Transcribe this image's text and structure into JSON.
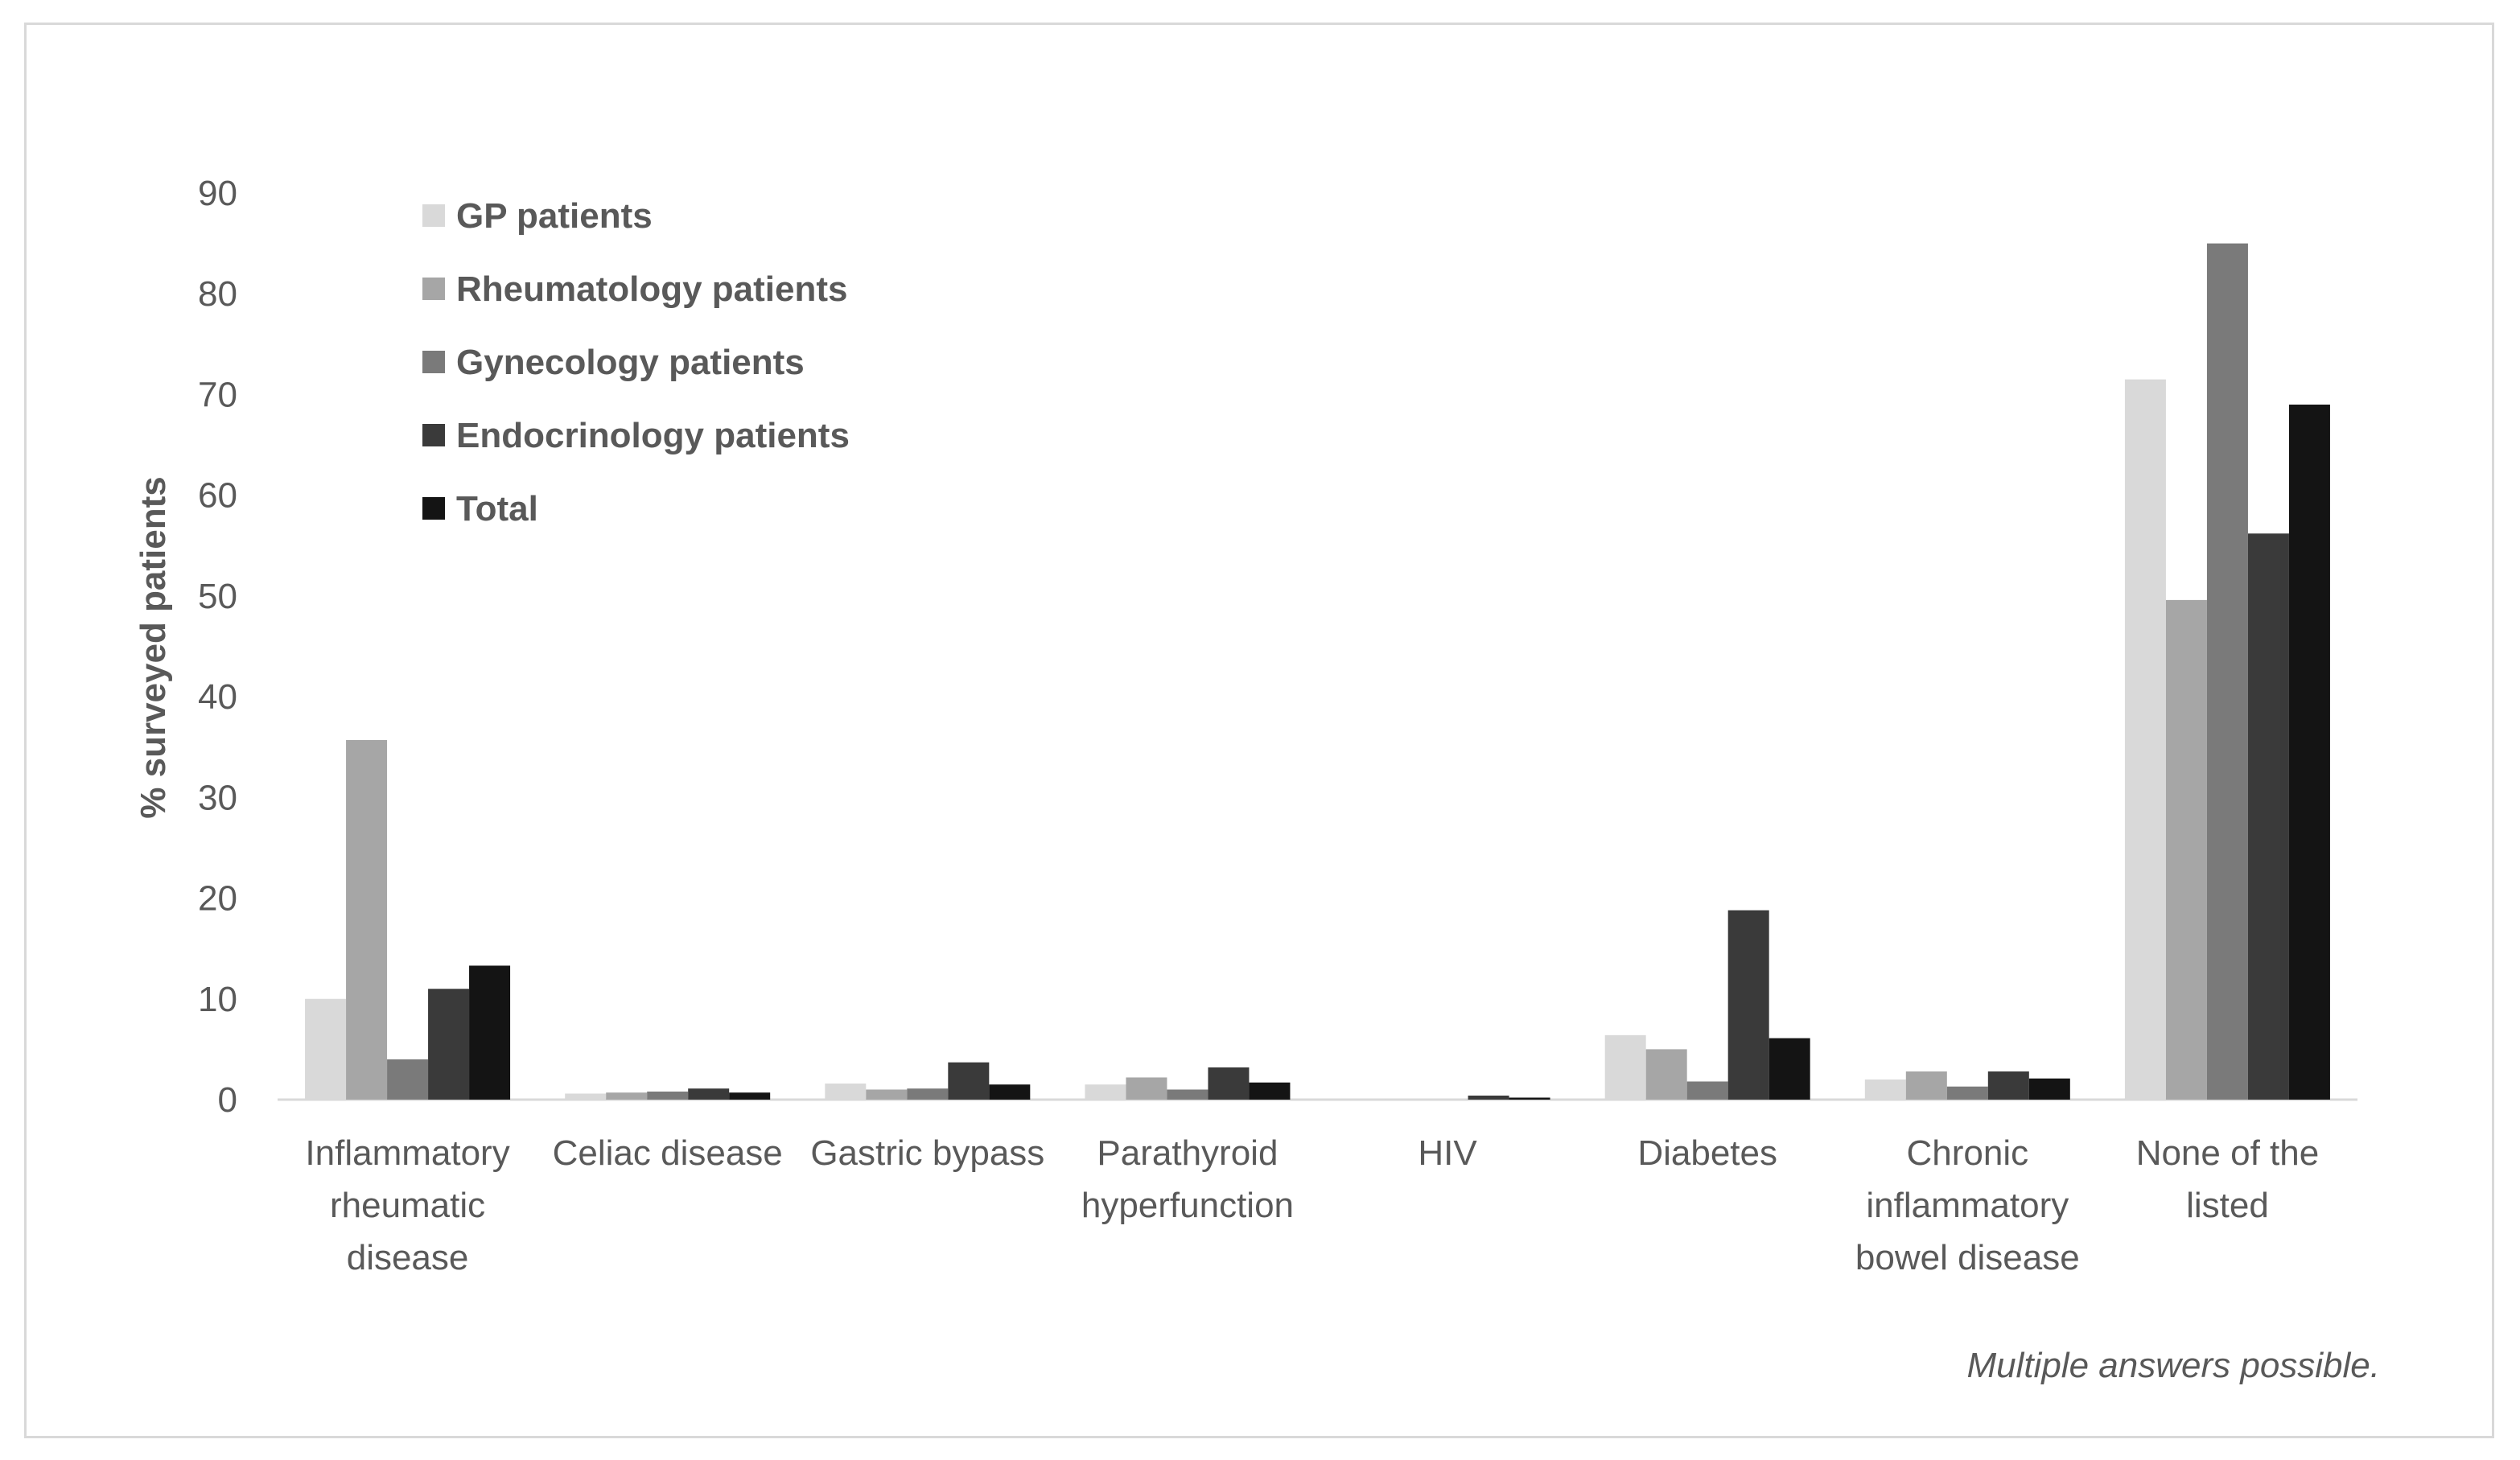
{
  "chart_data": {
    "type": "bar",
    "title": "",
    "xlabel": "",
    "ylabel": "% surveyed patients",
    "ylim": [
      0,
      90
    ],
    "yticks": [
      0,
      10,
      20,
      30,
      40,
      50,
      60,
      70,
      80,
      90
    ],
    "grid": false,
    "legend_position": "top-left",
    "categories": [
      "Inflammatory rheumatic disease",
      "Celiac disease",
      "Gastric bypass",
      "Parathyroid hyperfunction",
      "HIV",
      "Diabetes",
      "Chronic inflammatory bowel disease",
      "None of the listed"
    ],
    "category_label_lines": [
      [
        "Inflammatory",
        "rheumatic",
        "disease"
      ],
      [
        "Celiac disease"
      ],
      [
        "Gastric bypass"
      ],
      [
        "Parathyroid",
        "hyperfunction"
      ],
      [
        "HIV"
      ],
      [
        "Diabetes"
      ],
      [
        "Chronic",
        "inflammatory",
        "bowel disease"
      ],
      [
        "None of the",
        "listed"
      ]
    ],
    "series": [
      {
        "name": "GP patients",
        "color": "#d9d9d9",
        "values": [
          10,
          0.6,
          1.6,
          1.5,
          0.1,
          6.4,
          2.0,
          71.5
        ]
      },
      {
        "name": "Rheumatology patients",
        "color": "#a6a6a6",
        "values": [
          35.7,
          0.7,
          1.0,
          2.2,
          0.0,
          5.0,
          2.8,
          49.6
        ]
      },
      {
        "name": "Gynecology patients",
        "color": "#7a7a7a",
        "values": [
          4.0,
          0.8,
          1.1,
          1.0,
          0.0,
          1.8,
          1.3,
          85.0
        ]
      },
      {
        "name": "Endocrinology patients",
        "color": "#3a3a3a",
        "values": [
          11.0,
          1.1,
          3.7,
          3.2,
          0.4,
          18.8,
          2.8,
          56.2
        ]
      },
      {
        "name": "Total",
        "color": "#141414",
        "values": [
          13.3,
          0.7,
          1.5,
          1.7,
          0.2,
          6.1,
          2.1,
          69.0
        ]
      }
    ],
    "annotation": "Multiple answers possible."
  }
}
